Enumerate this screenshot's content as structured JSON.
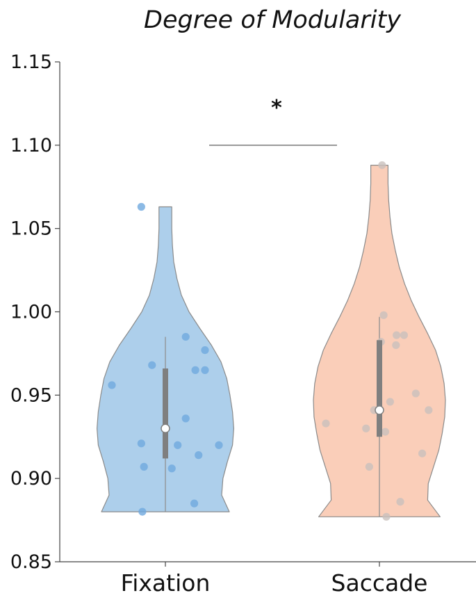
{
  "chart_data": {
    "type": "violin",
    "title": "Degree of Modularity",
    "xlabel": "",
    "ylabel": "",
    "ylim": [
      0.85,
      1.15
    ],
    "yticks": [
      "0.85",
      "0.90",
      "0.95",
      "1.00",
      "1.05",
      "1.10",
      "1.15"
    ],
    "categories": [
      "Fixation",
      "Saccade"
    ],
    "significance": {
      "label": "*",
      "between": [
        "Fixation",
        "Saccade"
      ],
      "y": 1.1
    },
    "series": [
      {
        "category": "Fixation",
        "color": "#9fc7e8",
        "point_color": "#6fa9de",
        "min": 0.88,
        "max": 1.063,
        "q1": 0.912,
        "median": 0.93,
        "q3": 0.966,
        "whisker_high": 0.985,
        "points": [
          1.063,
          0.985,
          0.977,
          0.968,
          0.965,
          0.965,
          0.956,
          0.936,
          0.921,
          0.92,
          0.92,
          0.914,
          0.907,
          0.906,
          0.885,
          0.88
        ],
        "jitter": [
          -0.45,
          0.38,
          0.74,
          -0.25,
          0.56,
          0.74,
          -1.0,
          0.38,
          -0.45,
          0.23,
          1.0,
          0.62,
          -0.4,
          0.12,
          0.54,
          -0.43
        ],
        "density": [
          [
            0.88,
            1.0
          ],
          [
            0.89,
            0.88
          ],
          [
            0.9,
            0.9
          ],
          [
            0.91,
            0.97
          ],
          [
            0.92,
            1.05
          ],
          [
            0.93,
            1.07
          ],
          [
            0.94,
            1.05
          ],
          [
            0.95,
            1.01
          ],
          [
            0.96,
            0.96
          ],
          [
            0.97,
            0.87
          ],
          [
            0.98,
            0.72
          ],
          [
            0.99,
            0.54
          ],
          [
            1.0,
            0.37
          ],
          [
            1.01,
            0.25
          ],
          [
            1.02,
            0.18
          ],
          [
            1.03,
            0.13
          ],
          [
            1.04,
            0.11
          ],
          [
            1.05,
            0.1
          ],
          [
            1.063,
            0.1
          ]
        ]
      },
      {
        "category": "Saccade",
        "color": "#f9c6ad",
        "point_color": "#c9c0bd",
        "min": 0.877,
        "max": 1.088,
        "q1": 0.925,
        "median": 0.941,
        "q3": 0.983,
        "whisker_high": 0.997,
        "points": [
          1.088,
          0.998,
          0.986,
          0.986,
          0.982,
          0.98,
          0.951,
          0.946,
          0.941,
          0.941,
          0.933,
          0.93,
          0.928,
          0.915,
          0.907,
          0.886,
          0.877
        ],
        "jitter": [
          0.05,
          0.08,
          0.32,
          0.46,
          0.03,
          0.31,
          0.68,
          0.2,
          -0.1,
          0.92,
          -1.0,
          -0.25,
          0.11,
          0.8,
          -0.19,
          0.39,
          0.13
        ],
        "density": [
          [
            0.877,
            0.92
          ],
          [
            0.887,
            0.73
          ],
          [
            0.897,
            0.74
          ],
          [
            0.907,
            0.82
          ],
          [
            0.917,
            0.9
          ],
          [
            0.927,
            0.95
          ],
          [
            0.937,
            0.99
          ],
          [
            0.947,
            1.0
          ],
          [
            0.957,
            0.98
          ],
          [
            0.967,
            0.93
          ],
          [
            0.977,
            0.85
          ],
          [
            0.987,
            0.73
          ],
          [
            0.997,
            0.6
          ],
          [
            1.007,
            0.48
          ],
          [
            1.017,
            0.38
          ],
          [
            1.027,
            0.3
          ],
          [
            1.037,
            0.24
          ],
          [
            1.047,
            0.19
          ],
          [
            1.057,
            0.16
          ],
          [
            1.067,
            0.14
          ],
          [
            1.077,
            0.13
          ],
          [
            1.088,
            0.13
          ]
        ]
      }
    ]
  }
}
